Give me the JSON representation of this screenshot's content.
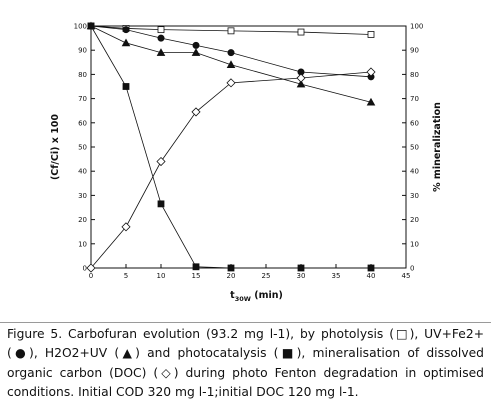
{
  "figure": {
    "caption": "Figure 5. Carbofuran evolution (93.2 mg l-1), by photolysis (□), UV+Fe2+ (●), H2O2+UV (▲) and photocatalysis (■), mineralisation of dissolved organic carbon (DOC) (◇) during photo Fenton degradation in optimised conditions. Initial COD 320 mg l-1;initial DOC 120 mg l-1."
  },
  "chart_data": {
    "type": "line",
    "xlabel": "t30W (min)",
    "ylabel_left": "(Cf/Ci) x 100",
    "ylabel_right": "% mineralization",
    "xlim": [
      0,
      45
    ],
    "ylim": [
      0,
      100
    ],
    "x_ticks": [
      0,
      5,
      10,
      15,
      20,
      25,
      30,
      35,
      40,
      45
    ],
    "y_ticks": [
      0,
      10,
      20,
      30,
      40,
      50,
      60,
      70,
      80,
      90,
      100
    ],
    "grid": false,
    "legend": "none (series identified by marker in caption)",
    "series": [
      {
        "marker": "open-square",
        "x": [
          0,
          5,
          10,
          20,
          30,
          40
        ],
        "values": [
          100,
          99,
          98.5,
          98,
          97.5,
          96.5
        ]
      },
      {
        "marker": "filled-circle",
        "x": [
          0,
          5,
          10,
          15,
          20,
          30,
          40
        ],
        "values": [
          100,
          98.5,
          95,
          92,
          89,
          81,
          79
        ]
      },
      {
        "marker": "filled-triangle",
        "x": [
          0,
          5,
          10,
          15,
          20,
          30,
          40
        ],
        "values": [
          100,
          93,
          89,
          89,
          84,
          76,
          68.5
        ]
      },
      {
        "marker": "filled-square",
        "x": [
          0,
          5,
          10,
          15,
          20,
          30,
          40
        ],
        "values": [
          100,
          75,
          26.5,
          0.5,
          0,
          0,
          0
        ]
      },
      {
        "marker": "open-diamond",
        "axis": "right",
        "x": [
          0,
          5,
          10,
          15,
          20,
          30,
          40
        ],
        "values": [
          0,
          17,
          44,
          64.5,
          76.5,
          78.5,
          81
        ]
      }
    ]
  }
}
